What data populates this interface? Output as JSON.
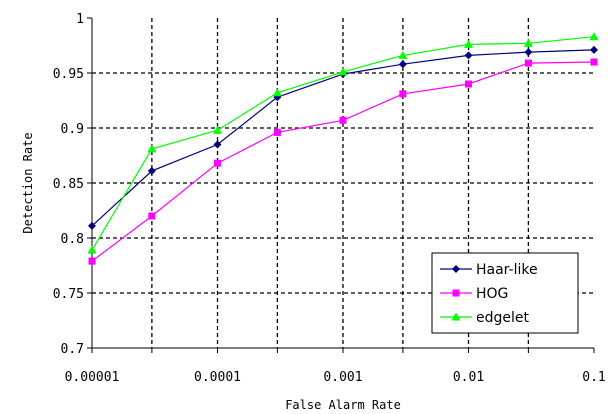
{
  "chart_data": {
    "type": "line",
    "x_scale": "log",
    "x": [
      1e-05,
      3e-05,
      0.0001,
      0.0003,
      0.001,
      0.003,
      0.01,
      0.03,
      0.1
    ],
    "xlim": [
      1e-05,
      0.1
    ],
    "ylim": [
      0.7,
      1
    ],
    "x_ticks": [
      "0.00001",
      "0.0001",
      "0.001",
      "0.01",
      "0.1"
    ],
    "y_ticks": [
      "0.7",
      "0.75",
      "0.8",
      "0.85",
      "0.9",
      "0.95",
      "1"
    ],
    "xlabel": "False Alarm Rate",
    "ylabel": "Detection Rate",
    "grid": true,
    "legend_position": "bottom-right",
    "series": [
      {
        "name": "Haar-like",
        "color": "#000080",
        "marker": "diamond",
        "values": [
          0.811,
          0.861,
          0.885,
          0.928,
          0.949,
          0.958,
          0.966,
          0.969,
          0.971
        ]
      },
      {
        "name": "HOG",
        "color": "#FF00FF",
        "marker": "square",
        "values": [
          0.779,
          0.82,
          0.868,
          0.896,
          0.907,
          0.931,
          0.94,
          0.959,
          0.96
        ]
      },
      {
        "name": "edgelet",
        "color": "#00FF00",
        "marker": "triangle",
        "values": [
          0.789,
          0.881,
          0.898,
          0.932,
          0.951,
          0.966,
          0.976,
          0.977,
          0.983
        ]
      }
    ]
  }
}
